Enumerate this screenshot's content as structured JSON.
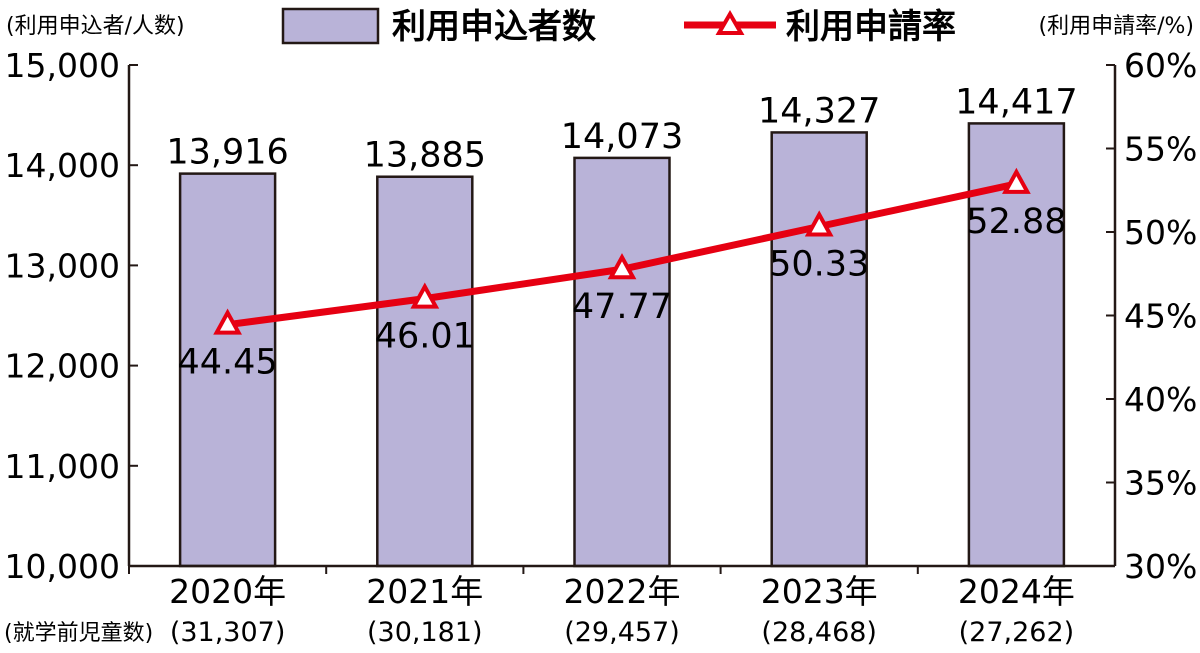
{
  "chart_data": {
    "type": "bar",
    "left_axis_unit": "(利用申込者/人数)",
    "right_axis_unit": "(利用申請率/%)",
    "bottom_left_label": "(就学前児童数)",
    "categories": [
      "2020年",
      "2021年",
      "2022年",
      "2023年",
      "2024年"
    ],
    "sub_categories": [
      "(31,307)",
      "(30,181)",
      "(29,457)",
      "(28,468)",
      "(27,262)"
    ],
    "series": [
      {
        "name": "利用申込者数",
        "type": "bar",
        "axis": "left",
        "values": [
          13916,
          13885,
          14073,
          14327,
          14417
        ],
        "labels": [
          "13,916",
          "13,885",
          "14,073",
          "14,327",
          "14,417"
        ],
        "color": "#b9b3d8",
        "edge_color": "#231815"
      },
      {
        "name": "利用申請率",
        "type": "line",
        "axis": "right",
        "marker": "triangle",
        "values": [
          44.45,
          46.01,
          47.77,
          50.33,
          52.88
        ],
        "labels": [
          "44.45",
          "46.01",
          "47.77",
          "50.33",
          "52.88"
        ],
        "color": "#e60012"
      }
    ],
    "ylim_left": [
      10000,
      15000
    ],
    "yticks_left": [
      "10,000",
      "11,000",
      "12,000",
      "13,000",
      "14,000",
      "15,000"
    ],
    "ylim_right": [
      30,
      60
    ],
    "yticks_right": [
      "30%",
      "35%",
      "40%",
      "45%",
      "50%",
      "55%",
      "60%"
    ],
    "legend_position": "top-center",
    "grid": false
  }
}
